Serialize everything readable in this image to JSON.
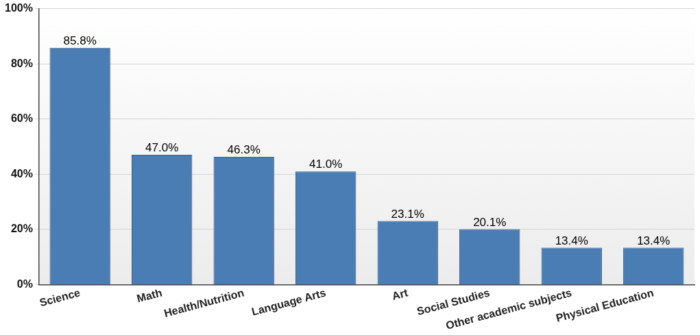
{
  "chart_data": {
    "type": "bar",
    "categories": [
      "Science",
      "Math",
      "Health/Nutrition",
      "Language Arts",
      "Art",
      "Social Studies",
      "Other academic subjects",
      "Physical Education"
    ],
    "values": [
      85.8,
      47.0,
      46.3,
      41.0,
      23.1,
      20.1,
      13.4,
      13.4
    ],
    "value_labels": [
      "85.8%",
      "47.0%",
      "46.3%",
      "41.0%",
      "23.1%",
      "20.1%",
      "13.4%",
      "13.4%"
    ],
    "color": "#4a7db3",
    "ylim": [
      0,
      100
    ],
    "yticks": [
      {
        "value": 0,
        "label": "0%"
      },
      {
        "value": 20,
        "label": "20%"
      },
      {
        "value": 40,
        "label": "40%"
      },
      {
        "value": 60,
        "label": "60%"
      },
      {
        "value": 80,
        "label": "80%"
      },
      {
        "value": 100,
        "label": "100%"
      }
    ],
    "grid": "y",
    "legend": false
  }
}
